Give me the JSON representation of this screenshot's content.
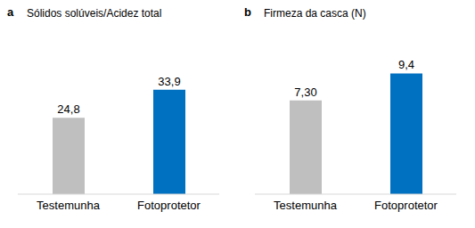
{
  "chart_data": [
    {
      "type": "bar",
      "title": "Sólidos solúveis/Acidez total",
      "annotations": [
        "a"
      ],
      "categories": [
        "Testemunha",
        "Fotoprotetor"
      ],
      "values": [
        24.8,
        33.9
      ],
      "value_labels": [
        "24,8",
        "33,9"
      ],
      "colors": [
        "#bfbfbf",
        "#0070c0"
      ],
      "ylim": [
        0,
        50
      ],
      "data_labels": true,
      "tick_labels": "x",
      "grid": false
    },
    {
      "type": "bar",
      "title": "Firmeza da casca (N)",
      "annotations": [
        "b"
      ],
      "categories": [
        "Testemunha",
        "Fotoprotetor"
      ],
      "values": [
        7.3,
        9.4
      ],
      "value_labels": [
        "7,30",
        "9,4"
      ],
      "colors": [
        "#bfbfbf",
        "#0070c0"
      ],
      "ylim": [
        0,
        12
      ],
      "data_labels": true,
      "tick_labels": "x",
      "grid": false
    }
  ]
}
